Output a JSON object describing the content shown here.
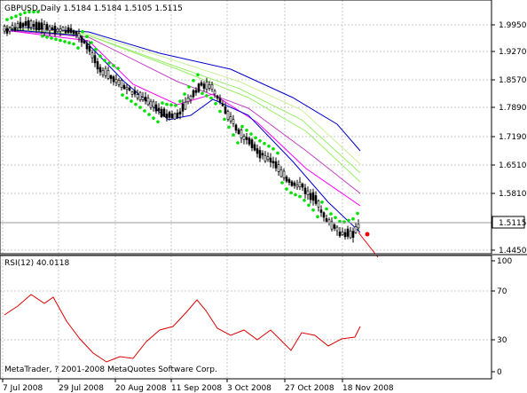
{
  "main_window": {
    "symbol_info": "GBPUSD,Daily  1.5184 1.5184 1.5105 1.5115",
    "current_price": "1.5115",
    "price_axis_labels": [
      "1.9950",
      "1.9270",
      "1.8570",
      "1.7890",
      "1.7190",
      "1.6510",
      "1.5810",
      "1.4450"
    ],
    "colors": {
      "bull_candle": "#ffffff",
      "bear_candle": "#000000",
      "parabolic_sar": "#00e000",
      "ma_fast": "#ff00ff",
      "ma_medium": "#c040c0",
      "ma_slow": "#99ee66",
      "ma_slowest": "#0000cc",
      "ma_pale": "#ccee99",
      "projection": "#ee0000",
      "price_tag": "#ffffff"
    }
  },
  "rsi_window": {
    "title": "RSI(12) 40.0118",
    "axis_labels": [
      "100",
      "70",
      "30",
      "0"
    ],
    "color": "#dd0000"
  },
  "copyright": "MetaTrader, ? 2001-2008 MetaQuotes Software Corp.",
  "date_axis_labels": [
    "7 Jul 2008",
    "29 Jul 2008",
    "20 Aug 2008",
    "11 Sep 2008",
    "3 Oct 2008",
    "27 Oct 2008",
    "18 Nov 2008"
  ]
}
